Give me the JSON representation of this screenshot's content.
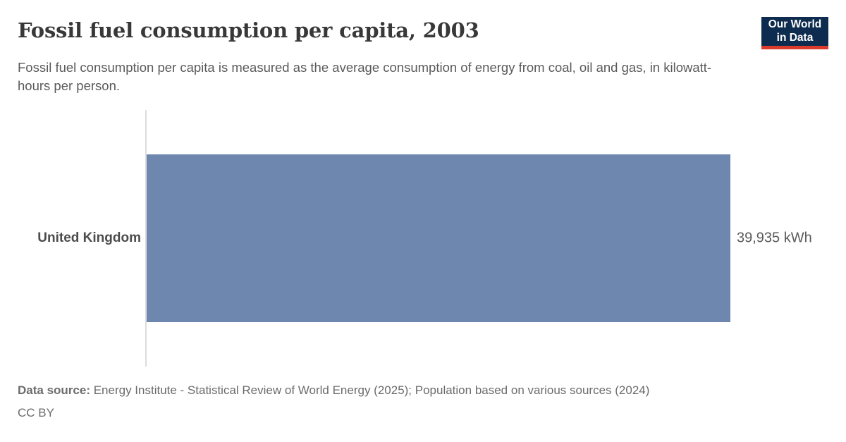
{
  "header": {
    "title": "Fossil fuel consumption per capita, 2003",
    "subtitle": "Fossil fuel consumption per capita is measured as the average consumption of energy from coal, oil and gas, in kilowatt-hours per person."
  },
  "logo": {
    "line1": "Our World",
    "line2": "in Data",
    "bg_color": "#0e2c4f",
    "accent_color": "#dc3a2b"
  },
  "chart_data": {
    "type": "bar",
    "orientation": "horizontal",
    "title": "Fossil fuel consumption per capita, 2003",
    "categories": [
      "United Kingdom"
    ],
    "values": [
      39935
    ],
    "value_labels": [
      "39,935 kWh"
    ],
    "unit": "kWh",
    "xlabel": "",
    "ylabel": "",
    "xlim": [
      0,
      39935
    ],
    "grid": false,
    "legend": "none",
    "bar_color": "#6e87af",
    "axis_color": "#dcdcdc"
  },
  "footer": {
    "source_label": "Data source:",
    "source_text": " Energy Institute - Statistical Review of World Energy (2025); Population based on various sources (2024)",
    "license": "CC BY"
  }
}
